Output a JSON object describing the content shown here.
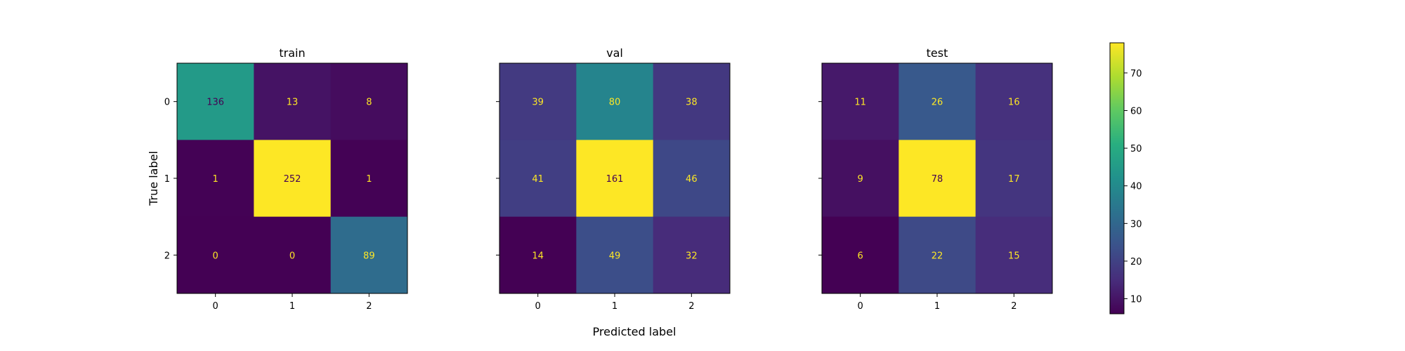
{
  "chart_data": {
    "type": "heatmap",
    "colormap": "viridis",
    "xlabel": "Predicted label",
    "ylabel": "True label",
    "x_ticks": [
      "0",
      "1",
      "2"
    ],
    "y_ticks": [
      "0",
      "1",
      "2"
    ],
    "panels": [
      {
        "title": "train",
        "matrix": [
          [
            136,
            13,
            8
          ],
          [
            1,
            252,
            1
          ],
          [
            0,
            0,
            89
          ]
        ]
      },
      {
        "title": "val",
        "matrix": [
          [
            39,
            80,
            38
          ],
          [
            41,
            161,
            46
          ],
          [
            14,
            49,
            32
          ]
        ]
      },
      {
        "title": "test",
        "matrix": [
          [
            11,
            26,
            16
          ],
          [
            9,
            78,
            17
          ],
          [
            6,
            22,
            15
          ]
        ]
      }
    ],
    "colorbar": {
      "range": [
        6,
        78
      ],
      "ticks": [
        "10",
        "20",
        "30",
        "40",
        "50",
        "60",
        "70"
      ]
    },
    "annotation_colors": {
      "on_dark": "#fde725",
      "on_light": "#440154"
    },
    "grid": false
  }
}
